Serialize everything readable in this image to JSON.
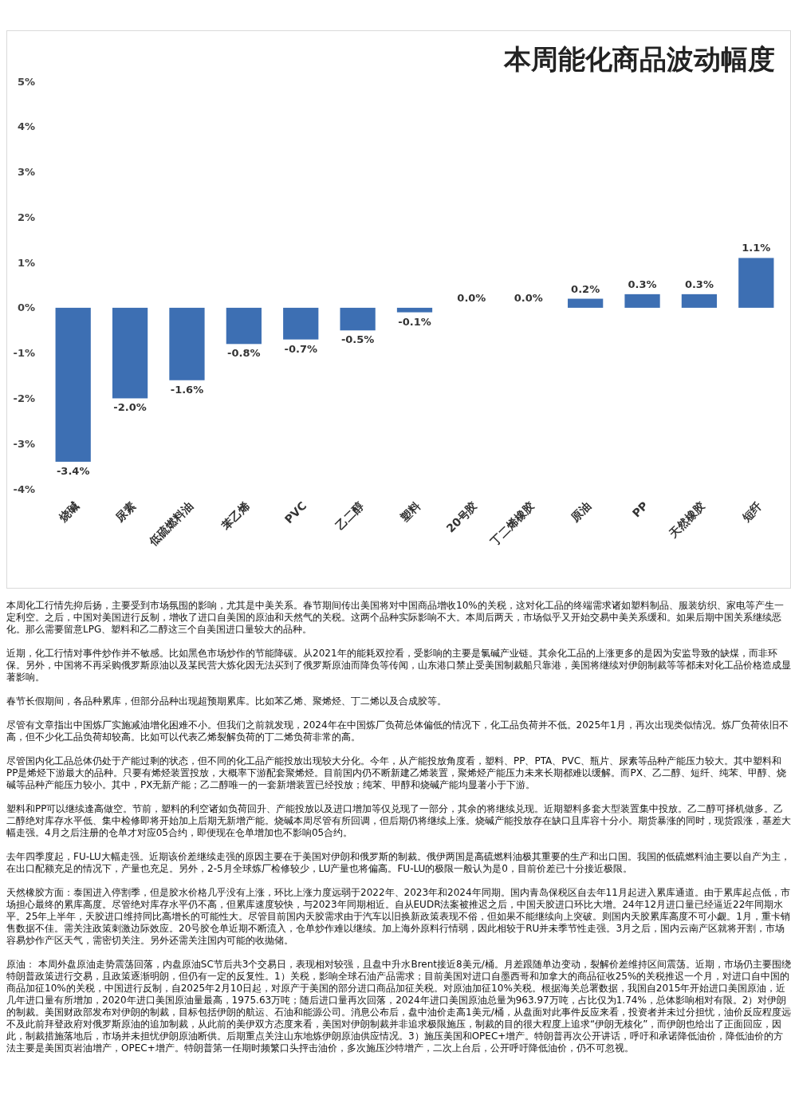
{
  "chart_data": {
    "type": "bar",
    "title": "本周能化商品波动幅度",
    "categories": [
      "烧碱",
      "尿素",
      "低硫燃料油",
      "苯乙烯",
      "PVC",
      "乙二醇",
      "塑料",
      "20号胶",
      "丁二烯橡胶",
      "原油",
      "PP",
      "天然橡胶",
      "短纤"
    ],
    "values": [
      -3.4,
      -2.0,
      -1.6,
      -0.8,
      -0.7,
      -0.5,
      -0.1,
      0.0,
      0.0,
      0.2,
      0.3,
      0.3,
      1.1
    ],
    "value_labels": [
      "-3.4%",
      "-2.0%",
      "-1.6%",
      "-0.8%",
      "-0.7%",
      "-0.5%",
      "-0.1%",
      "0.0%",
      "0.0%",
      "0.2%",
      "0.3%",
      "0.3%",
      "1.1%"
    ],
    "color": "#3d6fb3",
    "ylim": [
      -4,
      5
    ],
    "yticks": [
      {
        "value": -4,
        "label": "-4%"
      },
      {
        "value": -3,
        "label": "-3%"
      },
      {
        "value": -2,
        "label": "-2%"
      },
      {
        "value": -1,
        "label": "-1%"
      },
      {
        "value": 0,
        "label": "0%"
      },
      {
        "value": 1,
        "label": "1%"
      },
      {
        "value": 2,
        "label": "2%"
      },
      {
        "value": 3,
        "label": "3%"
      },
      {
        "value": 4,
        "label": "4%"
      },
      {
        "value": 5,
        "label": "5%"
      }
    ],
    "grid": false,
    "annotations": [
      "本周化工行情先抑后扬，主要受到市场氛围的影响，尤其是中美关系。春节期间传出美国将对中国商品增收10%的关税，这对化工品的终端需求诸如塑料制品、服装纺织、家电等产生一定利空。之后，中国对美国进行反制，增收了进口自美国的原油和天然气的关税。这两个品种实际影响不大。本周后两天，市场似乎又开始交易中美关系缓和。如果后期中国关系继续恶化。那么需要留意LPG、塑料和乙二醇这三个自美国进口量较大的品种。",
      "近期，化工行情对事件炒作并不敏感。比如黑色市场炒作的节能降碳。从2021年的能耗双控看，受影响的主要是氯碱产业链。其余化工品的上涨更多的是因为安监导致的缺煤，而非环保。另外，中国将不再采购俄罗斯原油以及某民营大炼化因无法买到了俄罗斯原油而降负等传闻，山东港口禁止受美国制裁船只靠港，美国将继续对伊朗制裁等等都未对化工品价格造成显著影响。",
      "春节长假期间，各品种累库，但部分品种出现超预期累库。比如苯乙烯、聚烯烃、丁二烯以及合成胶等。",
      "尽管有文章指出中国炼厂实施减油增化困难不小。但我们之前就发现，2024年在中国炼厂负荷总体偏低的情况下，化工品负荷并不低。2025年1月，再次出现类似情况。炼厂负荷依旧不高，但不少化工品负荷却较高。比如可以代表乙烯裂解负荷的丁二烯负荷非常的高。",
      "尽管国内化工品总体仍处于产能过剩的状态，但不同的化工品产能投放出现较大分化。今年，从产能投放角度看，塑料、PP、PTA、PVC、瓶片、尿素等品种产能压力较大。其中塑料和PP是烯烃下游最大的品种。只要有烯烃装置投放，大概率下游配套聚烯烃。目前国内仍不断新建乙烯装置，聚烯烃产能压力未来长期都难以缓解。而PX、乙二醇、短纤、纯苯、甲醇、烧碱等品种产能压力较小。其中，PX无新产能；乙二醇唯一的一套新增装置已经投放；纯苯、甲醇和烧碱产能均显著小于下游。",
      "塑料和PP可以继续逢高做空。节前，塑料的利空诸如负荷回升、产能投放以及进口增加等仅兑现了一部分，其余的将继续兑现。近期塑料多套大型装置集中投放。乙二醇可择机做多。乙二醇绝对库存水平低、集中检修即将开始加上后期无新增产能。烧碱本周尽管有所回调，但后期仍将继续上涨。烧碱产能投放存在缺口且库容十分小。期货暴涨的同时，现货跟涨，基差大幅走强。4月之后注册的仓单才对应05合约，即便现在仓单增加也不影响05合约。",
      "去年四季度起，FU-LU大幅走强。近期该价差继续走强的原因主要在于美国对伊朗和俄罗斯的制裁。俄伊两国是高硫燃料油极其重要的生产和出口国。我国的低硫燃料油主要以自产为主，在出口配额充足的情况下，产量也充足。另外，2-5月全球炼厂检修较少，LU产量也将偏高。FU-LU的极限一般认为是0，目前价差已十分接近极限。",
      "天然橡胶方面：泰国进入停割季，但是胶水价格几乎没有上涨，环比上涨力度远弱于2022年、2023年和2024年同期。国内青岛保税区自去年11月起进入累库通道。由于累库起点低，市场担心最终的累库高度。尽管绝对库存水平仍不高，但累库速度较快，与2023年同期相近。自从EUDR法案被推迟之后，中国天胶进口环比大增。24年12月进口量已经逼近22年同期水平。25年上半年，天胶进口维持同比高增长的可能性大。尽管目前国内天胶需求由于汽车以旧换新政策表现不俗，但如果不能继续向上突破。则国内天胶累库高度不可小觑。1月，重卡销售数据不佳。需关注政策刺激边际效应。20号胶仓单近期不断流入，仓单炒作难以继续。加上海外原料行情弱，因此相较于RU并未季节性走强。3月之后，国内云南产区就将开割，市场容易炒作产区天气，需密切关注。另外还需关注国内可能的收抛储。",
      "原油： 本周外盘原油走势震荡回落，内盘原油SC节后共3个交易日，表现相对较强，且盘中升水Brent接近8美元/桶。月差跟随单边变动，裂解价差维持区间震荡。近期，市场仍主要围绕特朗普政策进行交易，且政策逐渐明朗，但仍有一定的反复性。1）关税，影响全球石油产品需求；目前美国对进口自墨西哥和加拿大的商品征收25%的关税推迟一个月，对进口自中国的商品加征10%的关税，中国进行反制，自2025年2月10日起，对原产于美国的部分进口商品加征关税。对原油加征10%关税。根据海关总署数据，我国自2015年开始进口美国原油，近几年进口量有所增加，2020年进口美国原油量最高，1975.63万吨；随后进口量再次回落，2024年进口美国原油总量为963.97万吨，占比仅为1.74%，总体影响相对有限。2）对伊朗的制裁。美国财政部发布对伊朗的制裁，目标包括伊朗的航运、石油和能源公司。消息公布后，盘中油价走高1美元/桶，从盘面对此事件反应来看，投资者并未过分担忧，油价反应程度远不及此前拜登政府对俄罗斯原油的追加制裁，从此前的美伊双方态度来看，美国对伊朗制裁并非追求极限施压，制裁的目的很大程度上追求“伊朗无核化”，而伊朗也给出了正面回应，因此，制裁措施落地后，市场并未担忧伊朗原油断供。后期重点关注山东地炼伊朗原油供应情况。3）施压美国和OPEC+增产。特朗普再次公开讲话，呼吁和承诺降低油价，降低油价的方法主要是美国页岩油增产，OPEC+增产。特朗普第一任期时频繁口头抨击油价，多次施压沙特增产，二次上台后，公开呼吁降低油价，仍不可忽视。"
    ]
  }
}
